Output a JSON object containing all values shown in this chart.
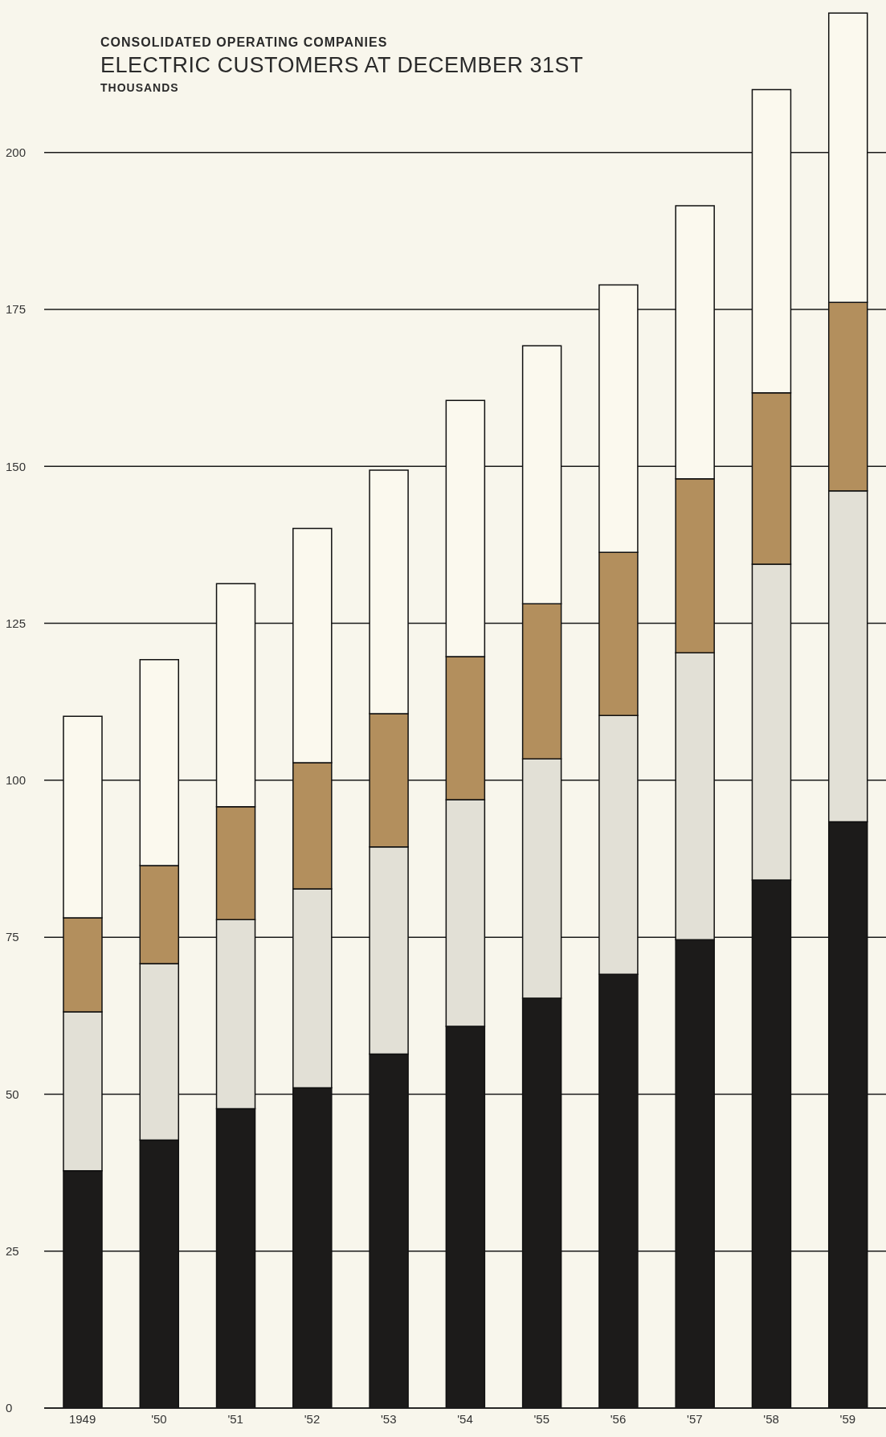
{
  "chart_data": {
    "type": "bar",
    "subtitle": "CONSOLIDATED OPERATING COMPANIES",
    "title": "ELECTRIC CUSTOMERS AT DECEMBER 31ST",
    "ylabel": "THOUSANDS",
    "categories": [
      "1949",
      "'50",
      "'51",
      "'52",
      "'53",
      "'54",
      "'55",
      "'56",
      "'57",
      "'58",
      "'59"
    ],
    "stacked": true,
    "grid": "y",
    "ylim": [
      0,
      223
    ],
    "yticks": [
      0,
      25,
      50,
      75,
      100,
      125,
      150,
      175,
      200
    ],
    "series": [
      {
        "color": "#1c1b1a",
        "values": [
          37.8,
          42.7,
          47.7,
          51.0,
          56.4,
          60.8,
          65.3,
          69.1,
          74.6,
          84.1,
          93.4
        ]
      },
      {
        "color": "#e2e0d6",
        "values": [
          25.3,
          28.1,
          30.1,
          31.7,
          33.0,
          36.1,
          38.1,
          41.2,
          45.7,
          50.3,
          52.7
        ]
      },
      {
        "color": "#b38f5d",
        "values": [
          15.0,
          15.6,
          18.0,
          20.1,
          21.2,
          22.8,
          24.7,
          26.0,
          27.7,
          27.3,
          30.0
        ]
      },
      {
        "color": "#fbf9ee",
        "values": [
          32.1,
          32.8,
          35.5,
          37.3,
          38.8,
          40.8,
          41.1,
          42.6,
          43.5,
          48.3,
          46.1
        ]
      }
    ]
  }
}
